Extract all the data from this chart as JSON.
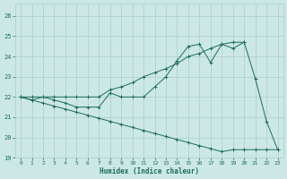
{
  "xlabel": "Humidex (Indice chaleur)",
  "bg_color": "#cce8e5",
  "grid_color": "#aaccca",
  "line_color": "#1a6b5e",
  "xlim_min": -0.5,
  "xlim_max": 23.5,
  "ylim_min": 19,
  "ylim_max": 26.6,
  "yticks": [
    19,
    20,
    21,
    22,
    23,
    24,
    25,
    26
  ],
  "xticks": [
    0,
    1,
    2,
    3,
    4,
    5,
    6,
    7,
    8,
    9,
    10,
    11,
    12,
    13,
    14,
    15,
    16,
    17,
    18,
    19,
    20,
    21,
    22,
    23
  ],
  "line1_x": [
    0,
    1,
    2,
    3,
    4,
    5,
    6,
    7,
    8,
    9,
    10,
    11,
    12,
    13,
    14,
    15,
    16,
    17,
    18,
    19,
    20,
    21,
    22,
    23
  ],
  "line1_y": [
    22.0,
    21.85,
    22.0,
    21.85,
    21.7,
    21.5,
    21.5,
    21.5,
    22.2,
    22.0,
    22.0,
    22.0,
    22.5,
    23.0,
    23.8,
    24.5,
    24.6,
    23.7,
    24.6,
    24.4,
    24.7,
    22.9,
    20.8,
    19.4
  ],
  "line2_x": [
    0,
    1,
    2,
    3,
    4,
    5,
    6,
    7,
    8,
    9,
    10,
    11,
    12,
    13,
    14,
    15,
    16,
    17,
    18,
    19,
    20
  ],
  "line2_y": [
    22.0,
    22.0,
    22.0,
    22.0,
    22.0,
    22.0,
    22.0,
    22.0,
    22.35,
    22.5,
    22.7,
    23.0,
    23.2,
    23.4,
    23.65,
    24.0,
    24.15,
    24.4,
    24.6,
    24.7,
    24.7
  ],
  "line3_x": [
    0,
    1,
    2,
    3,
    4,
    5,
    6,
    7,
    8,
    9,
    10,
    11,
    12,
    13,
    14,
    15,
    16,
    17,
    18,
    19,
    20,
    21,
    22,
    23
  ],
  "line3_y": [
    22.0,
    21.85,
    21.7,
    21.55,
    21.4,
    21.25,
    21.1,
    20.95,
    20.8,
    20.65,
    20.5,
    20.35,
    20.2,
    20.05,
    19.9,
    19.75,
    19.6,
    19.45,
    19.3,
    19.4,
    19.4,
    19.4,
    19.4,
    19.4
  ]
}
